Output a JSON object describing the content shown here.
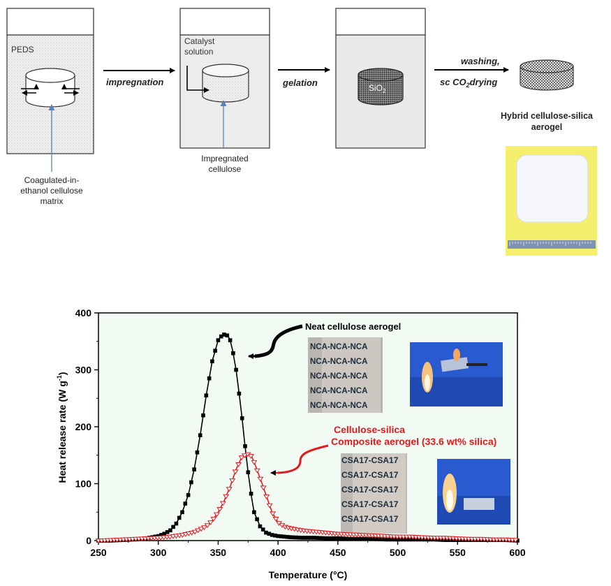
{
  "schematic": {
    "step1": {
      "liquid_label": "PEDS",
      "caption_lines": [
        "Coagulated-in-",
        "ethanol cellulose",
        "matrix"
      ]
    },
    "arrow1_label": "impregnation",
    "step2": {
      "liquid_label_lines": [
        "Catalyst",
        "solution"
      ],
      "caption_lines": [
        "Impregnated",
        "cellulose"
      ]
    },
    "arrow2_label": "gelation",
    "step3": {
      "inner_label": "SiO",
      "inner_sub": "2"
    },
    "arrow3_label_top": "washing,",
    "arrow3_label_bottom": {
      "pre": "sc CO",
      "sub": "2",
      "post": "drying"
    },
    "product_lines": [
      "Hybrid cellulose-silica",
      "aerogel"
    ]
  },
  "photos": {
    "neat_sample_lines": [
      "NCA-NCA-NCA",
      "NCA-NCA-NCA",
      "NCA-NCA-NCA",
      "NCA-NCA-NCA",
      "NCA-NCA-NCA"
    ],
    "composite_sample_lines": [
      "CSA17-CSA17",
      "CSA17-CSA17",
      "CSA17-CSA17",
      "CSA17-CSA17",
      "CSA17-CSA17"
    ]
  },
  "colors": {
    "neat": "#000000",
    "composite": "#e8191c",
    "plot_bg": "#f2faf4",
    "liquid": "#ececec",
    "photo_blue": "#2a5ad0",
    "photo_pad": "#f5ef6e"
  },
  "chart_data": {
    "type": "line",
    "xlabel": "Temperature (°C)",
    "ylabel": "Heat release rate (W g",
    "ylabel_sup": "-1",
    "ylabel_tail": ")",
    "xlim": [
      250,
      600
    ],
    "ylim": [
      0,
      400
    ],
    "x_ticks": [
      250,
      300,
      350,
      400,
      450,
      500,
      550,
      600
    ],
    "y_ticks": [
      0,
      100,
      200,
      300,
      400
    ],
    "grid": false,
    "series": [
      {
        "name": "Neat cellulose aerogel",
        "marker": "square",
        "x": [
          250,
          260,
          270,
          280,
          290,
          300,
          305,
          310,
          315,
          320,
          325,
          330,
          335,
          340,
          345,
          350,
          352,
          355,
          358,
          360,
          362,
          365,
          368,
          370,
          372,
          375,
          378,
          380,
          385,
          390,
          395,
          400,
          410,
          420,
          430,
          440,
          450,
          460,
          470,
          480,
          490,
          500,
          510,
          520,
          530,
          540,
          550,
          560,
          570,
          580,
          590,
          600
        ],
        "y": [
          0,
          0,
          1,
          2,
          4,
          8,
          12,
          18,
          30,
          50,
          80,
          125,
          185,
          255,
          315,
          352,
          358,
          362,
          360,
          352,
          335,
          300,
          250,
          215,
          175,
          120,
          75,
          50,
          25,
          14,
          10,
          8,
          6,
          5,
          5,
          4,
          4,
          3,
          3,
          3,
          2,
          2,
          2,
          2,
          2,
          1,
          1,
          1,
          1,
          1,
          1,
          0
        ]
      },
      {
        "name": "Cellulose-silica Composite aerogel (33.6 wt% silica)",
        "marker": "triangle-down",
        "x": [
          250,
          260,
          270,
          280,
          290,
          300,
          310,
          320,
          330,
          340,
          345,
          350,
          355,
          360,
          365,
          370,
          375,
          378,
          380,
          385,
          390,
          395,
          400,
          405,
          410,
          420,
          430,
          440,
          450,
          460,
          470,
          480,
          490,
          500,
          510,
          520,
          530,
          540,
          550,
          560,
          570,
          580,
          590,
          600
        ],
        "y": [
          0,
          1,
          2,
          3,
          4,
          5,
          7,
          10,
          15,
          25,
          35,
          50,
          70,
          95,
          125,
          148,
          152,
          148,
          138,
          110,
          80,
          50,
          32,
          25,
          22,
          18,
          16,
          14,
          12,
          11,
          10,
          9,
          8,
          7,
          7,
          6,
          5,
          5,
          4,
          3,
          3,
          2,
          2,
          1
        ]
      }
    ],
    "annotations": [
      {
        "text": "Neat cellulose aerogel"
      },
      {
        "text_lines": [
          "Cellulose-silica",
          "Composite aerogel (33.6 wt% silica)"
        ]
      }
    ]
  }
}
